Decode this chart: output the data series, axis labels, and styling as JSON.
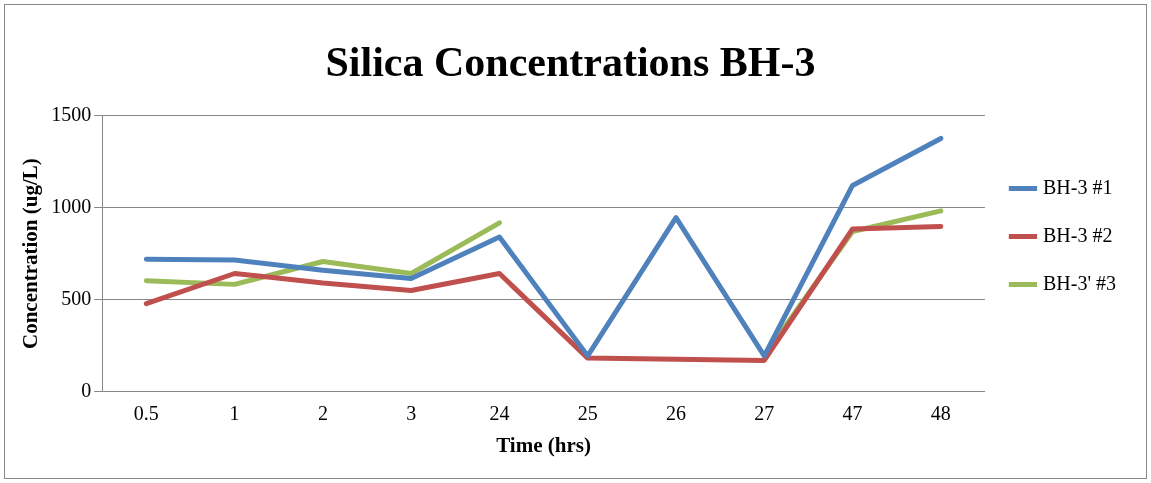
{
  "chart_data": {
    "type": "line",
    "title": "Silica Concentrations BH-3",
    "xlabel": "Time (hrs)",
    "ylabel": "Concentration (ug/L)",
    "categories": [
      "0.5",
      "1",
      "2",
      "3",
      "24",
      "25",
      "26",
      "27",
      "47",
      "48"
    ],
    "series": [
      {
        "name": "BH-3 #1",
        "color": "#4f81bd",
        "values": [
          720,
          715,
          660,
          615,
          840,
          195,
          945,
          195,
          1120,
          1375
        ]
      },
      {
        "name": "BH-3 #2",
        "color": "#c0504d",
        "values": [
          478,
          642,
          590,
          550,
          642,
          183,
          177,
          170,
          884,
          897
        ]
      },
      {
        "name": "BH-3' #3",
        "color": "#9bbb59",
        "values": [
          603,
          583,
          707,
          642,
          917,
          null,
          null,
          196,
          870,
          982
        ]
      }
    ],
    "ylim": [
      0,
      1500
    ],
    "yticks": [
      0,
      500,
      1000,
      1500
    ],
    "grid": "y",
    "legend": "right",
    "marker": "none",
    "line_style": "solid"
  }
}
